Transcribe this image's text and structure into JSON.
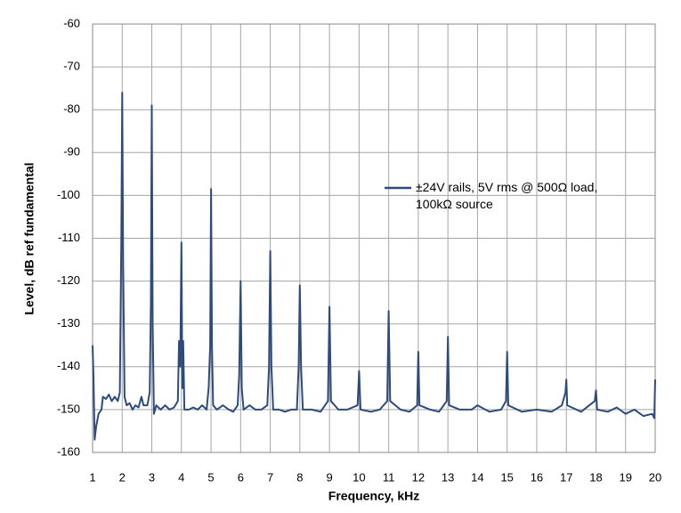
{
  "chart_data": {
    "type": "line",
    "xlabel": "Frequency, kHz",
    "ylabel": "Level, dB ref fundamental",
    "xlim": [
      1,
      20
    ],
    "ylim": [
      -160,
      -60
    ],
    "xticks": [
      1,
      2,
      3,
      4,
      5,
      6,
      7,
      8,
      9,
      10,
      11,
      12,
      13,
      14,
      15,
      16,
      17,
      18,
      19,
      20
    ],
    "yticks": [
      -160,
      -150,
      -140,
      -130,
      -120,
      -110,
      -100,
      -90,
      -80,
      -70,
      -60
    ],
    "grid": true,
    "series": [
      {
        "name": "±24V rails, 5V rms @ 500Ω load, 100kΩ source",
        "color": "#2f4b7c",
        "x": [
          1,
          1.03,
          1.07,
          1.12,
          1.2,
          1.3,
          1.35,
          1.45,
          1.55,
          1.65,
          1.75,
          1.85,
          1.92,
          1.97,
          2,
          2.03,
          2.08,
          2.15,
          2.25,
          2.35,
          2.45,
          2.55,
          2.65,
          2.72,
          2.85,
          2.93,
          2.97,
          3,
          3.03,
          3.07,
          3.15,
          3.3,
          3.45,
          3.6,
          3.75,
          3.88,
          3.92,
          3.96,
          4,
          4.03,
          4.06,
          4.1,
          4.25,
          4.4,
          4.55,
          4.7,
          4.85,
          4.92,
          4.97,
          5,
          5.03,
          5.07,
          5.2,
          5.4,
          5.6,
          5.75,
          5.9,
          5.95,
          6,
          6.04,
          6.1,
          6.3,
          6.5,
          6.7,
          6.9,
          6.96,
          7,
          7.04,
          7.1,
          7.3,
          7.5,
          7.7,
          7.9,
          7.96,
          8,
          8.04,
          8.1,
          8.4,
          8.7,
          8.95,
          9,
          9.05,
          9.3,
          9.6,
          9.95,
          10,
          10.05,
          10.4,
          10.7,
          10.95,
          11,
          11.05,
          11.4,
          11.7,
          11.96,
          12,
          12.04,
          12.4,
          12.7,
          12.96,
          13,
          13.04,
          13.4,
          13.8,
          14,
          14.4,
          14.8,
          14.96,
          15,
          15.04,
          15.5,
          16,
          16.5,
          16.85,
          16.97,
          17,
          17.03,
          17.5,
          17.96,
          18,
          18.04,
          18.4,
          18.7,
          19,
          19.3,
          19.6,
          19.9,
          19.97,
          20
        ],
        "values": [
          -135,
          -142,
          -157,
          -154,
          -151,
          -150,
          -147,
          -147.5,
          -146.5,
          -148,
          -147,
          -148,
          -146,
          -110,
          -76,
          -115,
          -147,
          -149,
          -148.5,
          -150,
          -149,
          -149.5,
          -147,
          -149,
          -149,
          -146,
          -125,
          -79,
          -130,
          -151,
          -149,
          -150,
          -149,
          -150,
          -149.5,
          -148,
          -134,
          -140,
          -111,
          -145,
          -134,
          -150,
          -150,
          -149.5,
          -150,
          -149,
          -150,
          -145,
          -135,
          -98.5,
          -135,
          -149,
          -150,
          -149,
          -150,
          -150.5,
          -149,
          -142,
          -120,
          -145,
          -150,
          -149,
          -150,
          -150,
          -149,
          -140,
          -113,
          -140,
          -150,
          -150,
          -150.5,
          -150,
          -150,
          -140,
          -121,
          -140,
          -150,
          -150,
          -150.5,
          -148,
          -126,
          -148,
          -150,
          -150,
          -149,
          -141,
          -150,
          -150.5,
          -150,
          -148,
          -127,
          -148,
          -150,
          -150.5,
          -149,
          -136.5,
          -149,
          -150,
          -150.5,
          -148,
          -133,
          -149,
          -150,
          -150,
          -149,
          -150.5,
          -150,
          -148,
          -136.5,
          -149,
          -150.5,
          -150,
          -150.5,
          -149,
          -146,
          -143,
          -149,
          -150.5,
          -148,
          -145.5,
          -150,
          -150.5,
          -149.5,
          -151,
          -150,
          -151.5,
          -151,
          -152,
          -143
        ]
      }
    ]
  }
}
